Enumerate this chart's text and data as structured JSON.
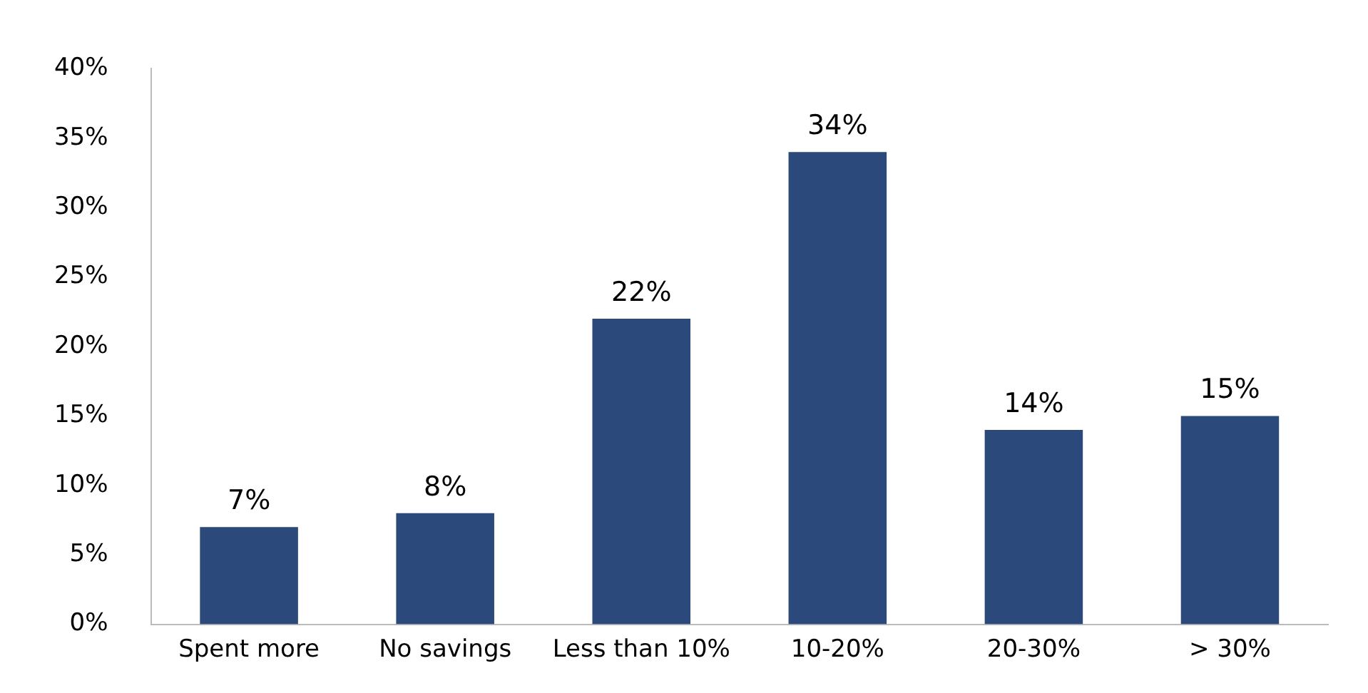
{
  "chart_data": {
    "type": "bar",
    "categories": [
      "Spent more",
      "No savings",
      "Less than 10%",
      "10-20%",
      "20-30%",
      "> 30%"
    ],
    "values": [
      7,
      8,
      22,
      34,
      14,
      15
    ],
    "value_labels": [
      "7%",
      "8%",
      "22%",
      "34%",
      "14%",
      "15%"
    ],
    "color": "#2b4a7b",
    "ylim": [
      0,
      40
    ],
    "yticks": [
      {
        "value": 0,
        "label": "0%"
      },
      {
        "value": 5,
        "label": "5%"
      },
      {
        "value": 10,
        "label": "10%"
      },
      {
        "value": 15,
        "label": "15%"
      },
      {
        "value": 20,
        "label": "20%"
      },
      {
        "value": 25,
        "label": "25%"
      },
      {
        "value": 30,
        "label": "30%"
      },
      {
        "value": 35,
        "label": "35%"
      },
      {
        "value": 40,
        "label": "40%"
      }
    ],
    "grid": false,
    "legend": false
  }
}
